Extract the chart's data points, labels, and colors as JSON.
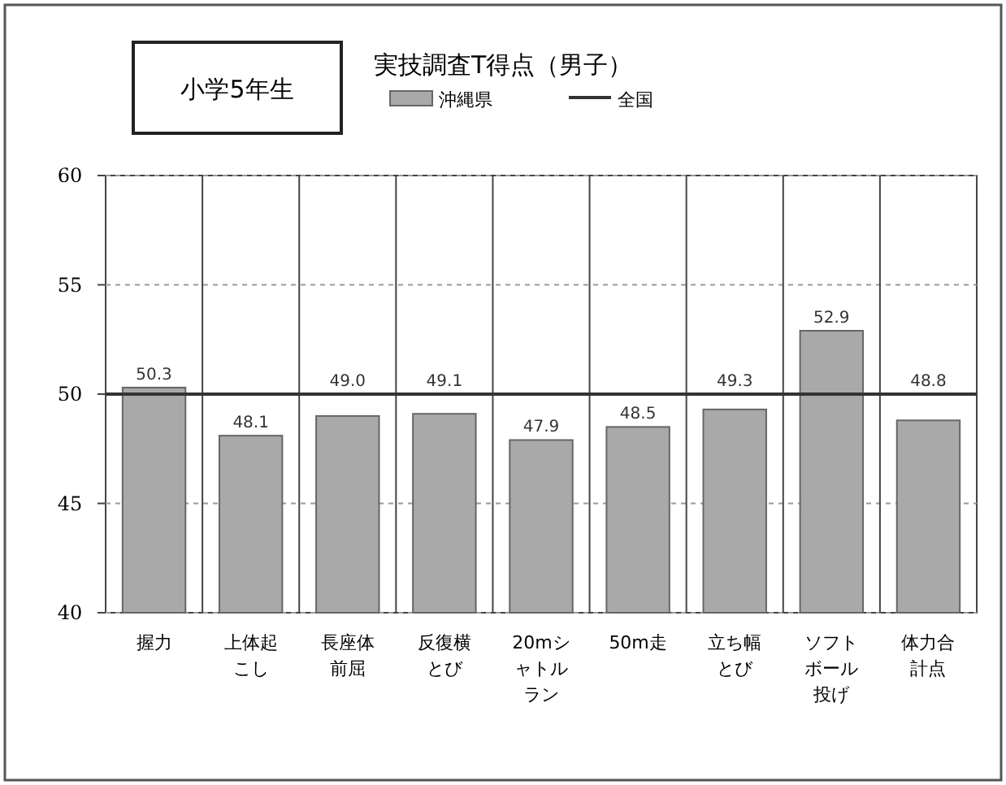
{
  "chart_data": {
    "type": "bar",
    "title": "実技調査T得点（男子）",
    "annotations": [
      "小学5年生"
    ],
    "categories": [
      "握力",
      "上体起こし",
      "長座体前屈",
      "反復横とび",
      "20mシャトルラン",
      "50m走",
      "立ち幅とび",
      "ソフトボール投げ",
      "体力合計点"
    ],
    "series": [
      {
        "name": "沖縄県",
        "color": "#a9a9a9",
        "values": [
          50.3,
          48.1,
          49.0,
          49.1,
          47.9,
          48.5,
          49.3,
          52.9,
          48.8
        ],
        "value_labels": [
          "50.3",
          "48.1",
          "49.0",
          "49.1",
          "47.9",
          "48.5",
          "49.3",
          "52.9",
          "48.8"
        ]
      }
    ],
    "ref_lines": [
      {
        "axis": "y",
        "value": 50,
        "label": "全国",
        "color": "#333333",
        "line_style": "solid"
      }
    ],
    "ylim": [
      40,
      60
    ],
    "yticks": [
      40,
      45,
      50,
      55,
      60
    ],
    "grid": true,
    "legend": "top"
  }
}
